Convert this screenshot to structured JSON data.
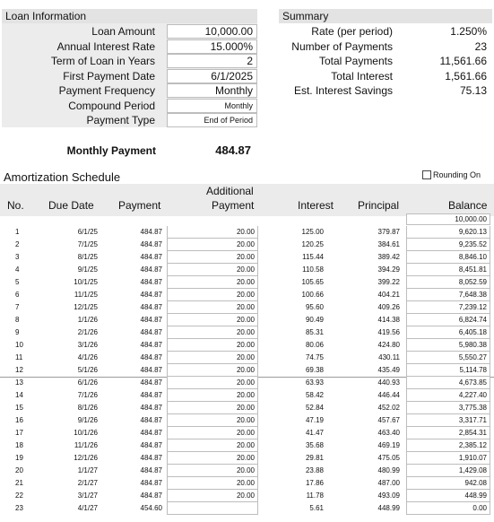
{
  "loan_info": {
    "header": "Loan Information",
    "fields": [
      {
        "label": "Loan Amount",
        "value": "10,000.00"
      },
      {
        "label": "Annual Interest Rate",
        "value": "15.000%"
      },
      {
        "label": "Term of Loan in Years",
        "value": "2"
      },
      {
        "label": "First Payment Date",
        "value": "6/1/2025"
      },
      {
        "label": "Payment Frequency",
        "value": "Monthly"
      },
      {
        "label": "Compound Period",
        "value": "Monthly"
      },
      {
        "label": "Payment Type",
        "value": "End of Period"
      }
    ],
    "monthly_payment_label": "Monthly Payment",
    "monthly_payment_value": "484.87"
  },
  "summary": {
    "header": "Summary",
    "items": [
      {
        "label": "Rate (per period)",
        "value": "1.250%"
      },
      {
        "label": "Number of Payments",
        "value": "23"
      },
      {
        "label": "Total Payments",
        "value": "11,561.66"
      },
      {
        "label": "Total Interest",
        "value": "1,561.66"
      },
      {
        "label": "Est. Interest Savings",
        "value": "75.13"
      }
    ]
  },
  "schedule": {
    "title": "Amortization Schedule",
    "rounding_label": "Rounding On",
    "rounding_checked": false,
    "columns": {
      "no": "No.",
      "due_date": "Due Date",
      "payment": "Payment",
      "additional_line1": "Additional",
      "additional_line2": "Payment",
      "interest": "Interest",
      "principal": "Principal",
      "balance": "Balance"
    },
    "opening_balance": "10,000.00",
    "rows": [
      [
        "1",
        "6/1/25",
        "484.87",
        "20.00",
        "125.00",
        "379.87",
        "9,620.13"
      ],
      [
        "2",
        "7/1/25",
        "484.87",
        "20.00",
        "120.25",
        "384.61",
        "9,235.52"
      ],
      [
        "3",
        "8/1/25",
        "484.87",
        "20.00",
        "115.44",
        "389.42",
        "8,846.10"
      ],
      [
        "4",
        "9/1/25",
        "484.87",
        "20.00",
        "110.58",
        "394.29",
        "8,451.81"
      ],
      [
        "5",
        "10/1/25",
        "484.87",
        "20.00",
        "105.65",
        "399.22",
        "8,052.59"
      ],
      [
        "6",
        "11/1/25",
        "484.87",
        "20.00",
        "100.66",
        "404.21",
        "7,648.38"
      ],
      [
        "7",
        "12/1/25",
        "484.87",
        "20.00",
        "95.60",
        "409.26",
        "7,239.12"
      ],
      [
        "8",
        "1/1/26",
        "484.87",
        "20.00",
        "90.49",
        "414.38",
        "6,824.74"
      ],
      [
        "9",
        "2/1/26",
        "484.87",
        "20.00",
        "85.31",
        "419.56",
        "6,405.18"
      ],
      [
        "10",
        "3/1/26",
        "484.87",
        "20.00",
        "80.06",
        "424.80",
        "5,980.38"
      ],
      [
        "11",
        "4/1/26",
        "484.87",
        "20.00",
        "74.75",
        "430.11",
        "5,550.27"
      ],
      [
        "12",
        "5/1/26",
        "484.87",
        "20.00",
        "69.38",
        "435.49",
        "5,114.78"
      ],
      [
        "13",
        "6/1/26",
        "484.87",
        "20.00",
        "63.93",
        "440.93",
        "4,673.85"
      ],
      [
        "14",
        "7/1/26",
        "484.87",
        "20.00",
        "58.42",
        "446.44",
        "4,227.40"
      ],
      [
        "15",
        "8/1/26",
        "484.87",
        "20.00",
        "52.84",
        "452.02",
        "3,775.38"
      ],
      [
        "16",
        "9/1/26",
        "484.87",
        "20.00",
        "47.19",
        "457.67",
        "3,317.71"
      ],
      [
        "17",
        "10/1/26",
        "484.87",
        "20.00",
        "41.47",
        "463.40",
        "2,854.31"
      ],
      [
        "18",
        "11/1/26",
        "484.87",
        "20.00",
        "35.68",
        "469.19",
        "2,385.12"
      ],
      [
        "19",
        "12/1/26",
        "484.87",
        "20.00",
        "29.81",
        "475.05",
        "1,910.07"
      ],
      [
        "20",
        "1/1/27",
        "484.87",
        "20.00",
        "23.88",
        "480.99",
        "1,429.08"
      ],
      [
        "21",
        "2/1/27",
        "484.87",
        "20.00",
        "17.86",
        "487.00",
        "942.08"
      ],
      [
        "22",
        "3/1/27",
        "484.87",
        "20.00",
        "11.78",
        "493.09",
        "448.99"
      ],
      [
        "23",
        "4/1/27",
        "454.60",
        "",
        "5.61",
        "448.99",
        "0.00"
      ]
    ]
  },
  "colors": {
    "header_gray": "#e3e3e3",
    "panel_gray": "#ececec",
    "input_border": "#bdbdbd"
  }
}
